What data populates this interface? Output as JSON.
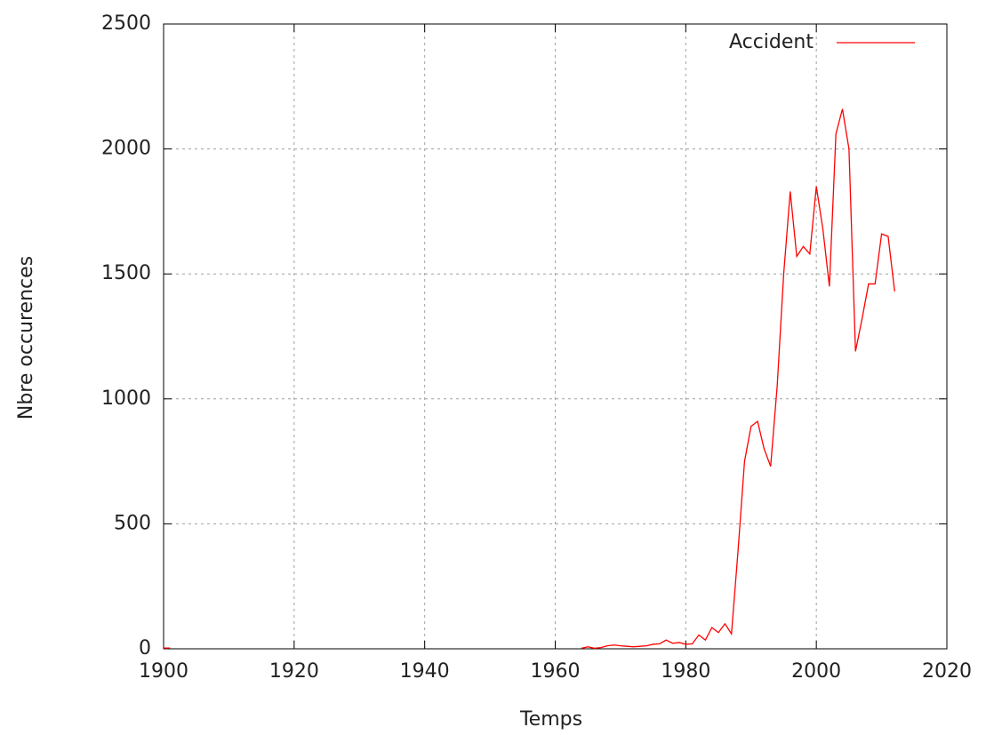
{
  "chart_data": {
    "type": "line",
    "x_label": "Temps",
    "y_label": "Nbre occurences",
    "xlim": [
      1900,
      2020
    ],
    "xticks": [
      1900,
      1920,
      1940,
      1960,
      1980,
      2000,
      2020
    ],
    "ylim": [
      0,
      2500
    ],
    "yticks": [
      0,
      500,
      1000,
      1500,
      2000,
      2500
    ],
    "grid": true,
    "legend": "upper right",
    "x": [
      1900,
      1901,
      1902,
      1964,
      1965,
      1966,
      1967,
      1968,
      1969,
      1970,
      1971,
      1972,
      1973,
      1974,
      1975,
      1976,
      1977,
      1978,
      1979,
      1980,
      1981,
      1982,
      1983,
      1984,
      1985,
      1986,
      1987,
      1988,
      1989,
      1990,
      1991,
      1992,
      1993,
      1994,
      1995,
      1996,
      1997,
      1998,
      1999,
      2000,
      2001,
      2002,
      2003,
      2004,
      2005,
      2006,
      2007,
      2008,
      2009,
      2010,
      2011,
      2012
    ],
    "series": [
      {
        "name": "Accident",
        "color": "#ff0000",
        "values": [
          3,
          3,
          null,
          2,
          8,
          2,
          5,
          12,
          15,
          12,
          10,
          8,
          10,
          12,
          18,
          20,
          35,
          22,
          25,
          18,
          20,
          55,
          35,
          85,
          65,
          100,
          60,
          390,
          750,
          890,
          910,
          800,
          730,
          1050,
          1500,
          1830,
          1570,
          1610,
          1580,
          1850,
          1680,
          1450,
          2060,
          2160,
          2000,
          1190,
          1320,
          1460,
          1460,
          1660,
          1650,
          1430
        ]
      }
    ]
  }
}
